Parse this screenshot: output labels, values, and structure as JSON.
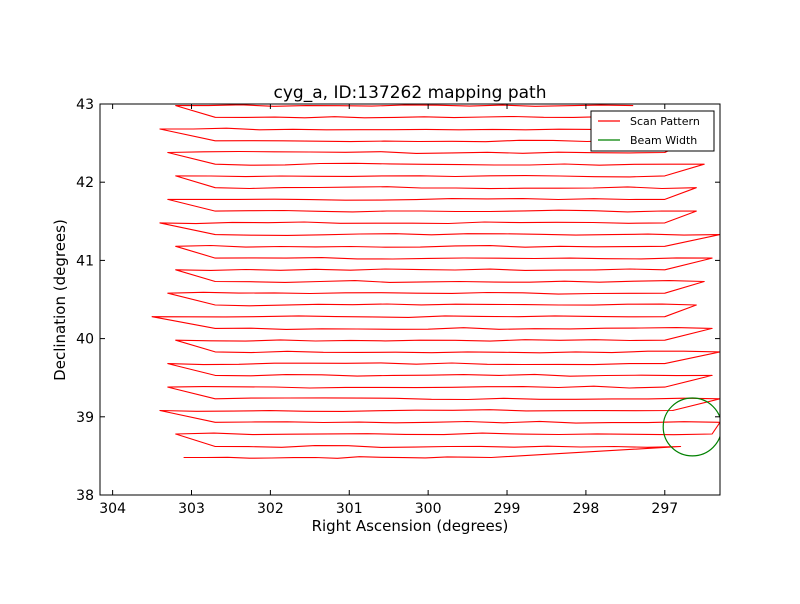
{
  "chart_data": {
    "type": "line",
    "title": "cyg_a, ID:137262 mapping path",
    "xlabel": "Right Ascension (degrees)",
    "ylabel": "Declination (degrees)",
    "xlim": [
      304.16,
      296.3
    ],
    "ylim": [
      38,
      43
    ],
    "x_inverted": true,
    "x_ticks": [
      "304",
      "303",
      "302",
      "301",
      "300",
      "299",
      "298",
      "297"
    ],
    "x_tick_values": [
      304,
      303,
      302,
      301,
      300,
      299,
      298,
      297
    ],
    "y_ticks": [
      "38",
      "39",
      "40",
      "41",
      "42",
      "43"
    ],
    "y_tick_values": [
      38,
      39,
      40,
      41,
      42,
      43
    ],
    "grid": false,
    "legend": {
      "placement": "top-right",
      "entries": [
        {
          "label": "Scan Pattern",
          "color": "#ff0000"
        },
        {
          "label": "Beam Width",
          "color": "#008000"
        }
      ]
    },
    "series": [
      {
        "name": "Scan Pattern",
        "color": "#ff0000",
        "scan_rows": [
          {
            "dec": 38.48,
            "x_start": 303.1,
            "x_end": 299.2
          },
          {
            "dec": 38.62,
            "x_start": 302.7,
            "x_end": 296.8
          },
          {
            "dec": 38.78,
            "x_start": 303.2,
            "x_end": 296.4
          },
          {
            "dec": 38.93,
            "x_start": 302.7,
            "x_end": 296.3
          },
          {
            "dec": 39.08,
            "x_start": 303.4,
            "x_end": 296.9
          },
          {
            "dec": 39.23,
            "x_start": 302.7,
            "x_end": 296.3
          },
          {
            "dec": 39.38,
            "x_start": 303.3,
            "x_end": 297.0
          },
          {
            "dec": 39.53,
            "x_start": 302.7,
            "x_end": 296.4
          },
          {
            "dec": 39.68,
            "x_start": 303.3,
            "x_end": 297.0
          },
          {
            "dec": 39.83,
            "x_start": 302.7,
            "x_end": 296.3
          },
          {
            "dec": 39.98,
            "x_start": 303.2,
            "x_end": 297.0
          },
          {
            "dec": 40.13,
            "x_start": 302.7,
            "x_end": 296.4
          },
          {
            "dec": 40.28,
            "x_start": 303.5,
            "x_end": 297.0
          },
          {
            "dec": 40.43,
            "x_start": 302.7,
            "x_end": 296.6
          },
          {
            "dec": 40.58,
            "x_start": 303.3,
            "x_end": 297.0
          },
          {
            "dec": 40.73,
            "x_start": 302.7,
            "x_end": 296.5
          },
          {
            "dec": 40.88,
            "x_start": 303.2,
            "x_end": 297.0
          },
          {
            "dec": 41.03,
            "x_start": 302.7,
            "x_end": 296.4
          },
          {
            "dec": 41.18,
            "x_start": 303.2,
            "x_end": 297.0
          },
          {
            "dec": 41.33,
            "x_start": 302.7,
            "x_end": 296.3
          },
          {
            "dec": 41.48,
            "x_start": 303.4,
            "x_end": 297.0
          },
          {
            "dec": 41.63,
            "x_start": 302.7,
            "x_end": 296.6
          },
          {
            "dec": 41.78,
            "x_start": 303.3,
            "x_end": 297.0
          },
          {
            "dec": 41.93,
            "x_start": 302.7,
            "x_end": 296.6
          },
          {
            "dec": 42.08,
            "x_start": 303.2,
            "x_end": 297.0
          },
          {
            "dec": 42.23,
            "x_start": 302.7,
            "x_end": 296.5
          },
          {
            "dec": 42.38,
            "x_start": 303.3,
            "x_end": 297.0
          },
          {
            "dec": 42.53,
            "x_start": 302.7,
            "x_end": 296.7
          },
          {
            "dec": 42.68,
            "x_start": 303.4,
            "x_end": 297.5
          },
          {
            "dec": 42.83,
            "x_start": 302.7,
            "x_end": 297.4
          },
          {
            "dec": 42.98,
            "x_start": 303.2,
            "x_end": 297.4
          }
        ]
      },
      {
        "name": "Beam Width",
        "color": "#008000",
        "shape": "circle",
        "center": [
          296.65,
          38.87
        ],
        "radius_deg": 0.37
      }
    ]
  }
}
